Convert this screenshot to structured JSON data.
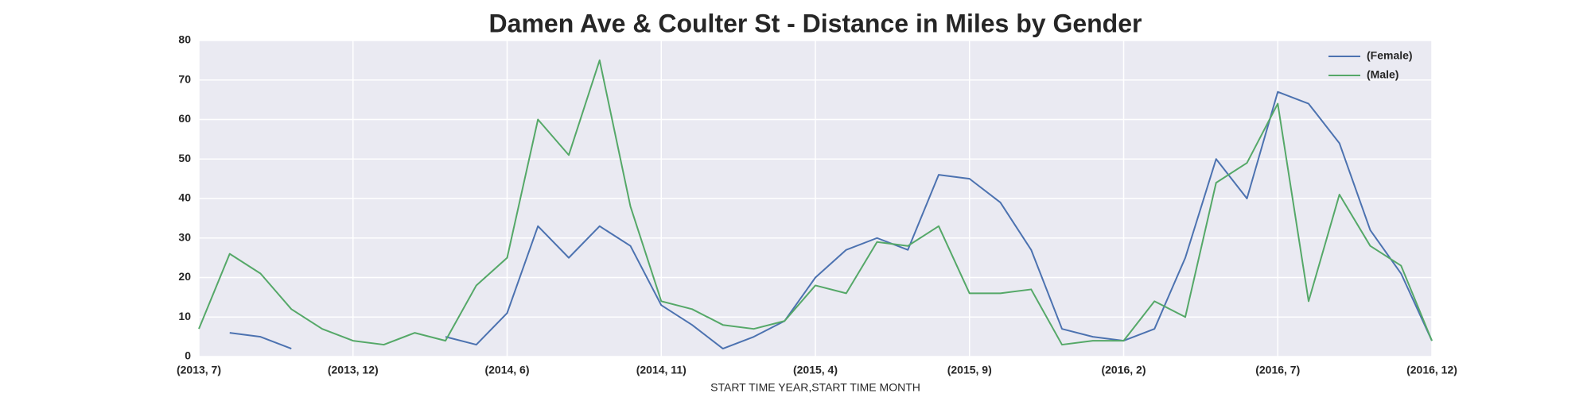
{
  "chart_data": {
    "type": "line",
    "title": "Damen Ave & Coulter St - Distance in Miles by Gender",
    "x_label": "START TIME YEAR,START TIME MONTH",
    "categories": [
      "(2013, 7)",
      null,
      null,
      null,
      null,
      "(2013, 12)",
      null,
      null,
      null,
      null,
      "(2014, 6)",
      null,
      null,
      null,
      null,
      "(2014, 11)",
      null,
      null,
      null,
      null,
      "(2015, 4)",
      null,
      null,
      null,
      null,
      "(2015, 9)",
      null,
      null,
      null,
      null,
      "(2016, 2)",
      null,
      null,
      null,
      null,
      "(2016, 7)",
      null,
      null,
      null,
      null,
      "(2016, 12)"
    ],
    "series": [
      {
        "name": "(Female)",
        "color": "#4c72b0",
        "values": [
          null,
          6,
          5,
          2,
          null,
          null,
          null,
          null,
          5,
          3,
          11,
          33,
          25,
          33,
          28,
          13,
          8,
          2,
          5,
          9,
          20,
          27,
          30,
          27,
          46,
          45,
          39,
          27,
          7,
          5,
          4,
          7,
          25,
          50,
          40,
          67,
          64,
          54,
          32,
          21,
          4
        ]
      },
      {
        "name": "(Male)",
        "color": "#55a868",
        "values": [
          7,
          26,
          21,
          12,
          7,
          4,
          3,
          6,
          4,
          18,
          25,
          60,
          51,
          75,
          38,
          14,
          12,
          8,
          7,
          9,
          18,
          16,
          29,
          28,
          33,
          16,
          16,
          17,
          3,
          4,
          4,
          14,
          10,
          44,
          49,
          64,
          14,
          41,
          28,
          23,
          4
        ]
      }
    ],
    "ylim": [
      0,
      80
    ],
    "yticks": [
      0,
      10,
      20,
      30,
      40,
      50,
      60,
      70,
      80
    ],
    "grid": true,
    "legend": "upper right"
  }
}
